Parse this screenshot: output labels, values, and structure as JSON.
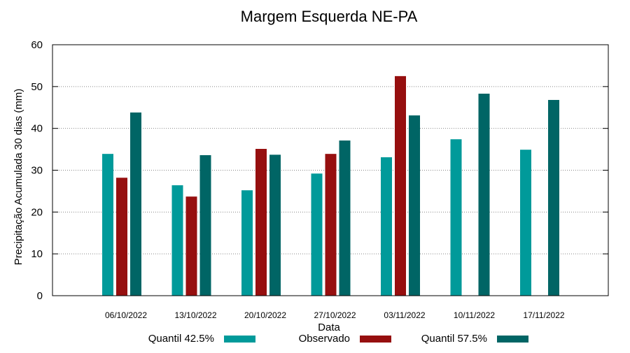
{
  "chart_data": {
    "type": "bar",
    "title": "Margem Esquerda NE-PA",
    "xlabel": "Data",
    "ylabel": "Precipitação Acumulada 30 dias (mm)",
    "ylim": [
      0,
      60
    ],
    "yticks": [
      0,
      10,
      20,
      30,
      40,
      50,
      60
    ],
    "grid": true,
    "legend_position": "bottom",
    "categories": [
      "06/10/2022",
      "13/10/2022",
      "20/10/2022",
      "27/10/2022",
      "03/11/2022",
      "10/11/2022",
      "17/11/2022"
    ],
    "series": [
      {
        "name": "Quantil 42.5%",
        "color": "#009a9a",
        "values": [
          33.9,
          26.4,
          25.2,
          29.2,
          33.1,
          37.4,
          34.9
        ]
      },
      {
        "name": "Observado",
        "color": "#960f0f",
        "values": [
          28.2,
          23.7,
          35.1,
          33.9,
          52.5,
          null,
          null
        ]
      },
      {
        "name": "Quantil 57.5%",
        "color": "#006565",
        "values": [
          43.8,
          33.6,
          33.7,
          37.1,
          43.1,
          48.3,
          46.8
        ]
      }
    ]
  }
}
